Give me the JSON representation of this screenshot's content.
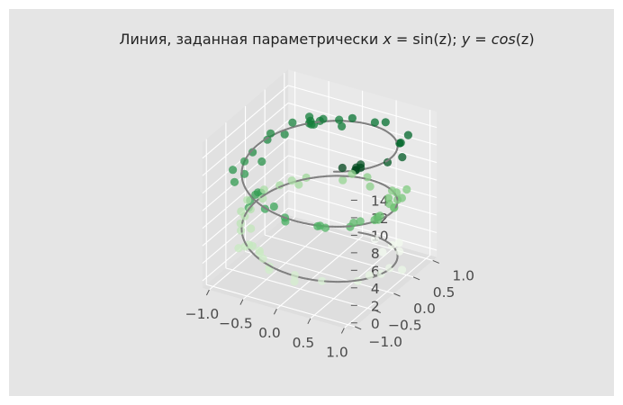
{
  "chart_data": {
    "type": "scatter",
    "projection": "3d",
    "title": {
      "prefix": "Линия, заданная параметрически ",
      "eq1_var": "x",
      "eq1_eq": " = ",
      "eq1_fn": "sin",
      "eq1_arg": "(z)",
      "sep": "; ",
      "eq2_var": "y",
      "eq2_eq": " = ",
      "eq2_fn": "cos",
      "eq2_arg": "(z)"
    },
    "xlabel": "",
    "ylabel": "",
    "zlabel": "",
    "x_ticks": [
      "−1.0",
      "−0.5",
      "0.0",
      "0.5",
      "1.0"
    ],
    "x_tick_values": [
      -1.0,
      -0.5,
      0.0,
      0.5,
      1.0
    ],
    "y_ticks": [
      "−1.0",
      "−0.5",
      "0.0",
      "0.5",
      "1.0"
    ],
    "y_tick_values": [
      -1.0,
      -0.5,
      0.0,
      0.5,
      1.0
    ],
    "z_ticks": [
      "0",
      "2",
      "4",
      "6",
      "8",
      "10",
      "12",
      "14"
    ],
    "z_tick_values": [
      0,
      2,
      4,
      6,
      8,
      10,
      12,
      14
    ],
    "xlim": [
      -1.1,
      1.1
    ],
    "ylim": [
      -1.1,
      1.1
    ],
    "zlim": [
      -0.8,
      15.8
    ],
    "grid": true,
    "line": {
      "x": "sin(z)",
      "y": "cos(z)",
      "z_range": [
        0,
        15
      ],
      "color": "#808080"
    },
    "scatter": {
      "x": "sin(z) + noise",
      "y": "cos(z) + noise",
      "z_range": [
        0,
        15
      ],
      "count": 100,
      "color_by": "z",
      "colormap": "Greens",
      "alpha": 0.75
    },
    "colors": {
      "background": "#e5e5e5",
      "pane_left": "#e1e1e1",
      "pane_right": "#e9e9e9",
      "pane_floor": "#dedede",
      "grid": "#ffffff",
      "line": "#808080",
      "cmap_low": "#eef7ea",
      "cmap_high": "#00441b"
    }
  }
}
